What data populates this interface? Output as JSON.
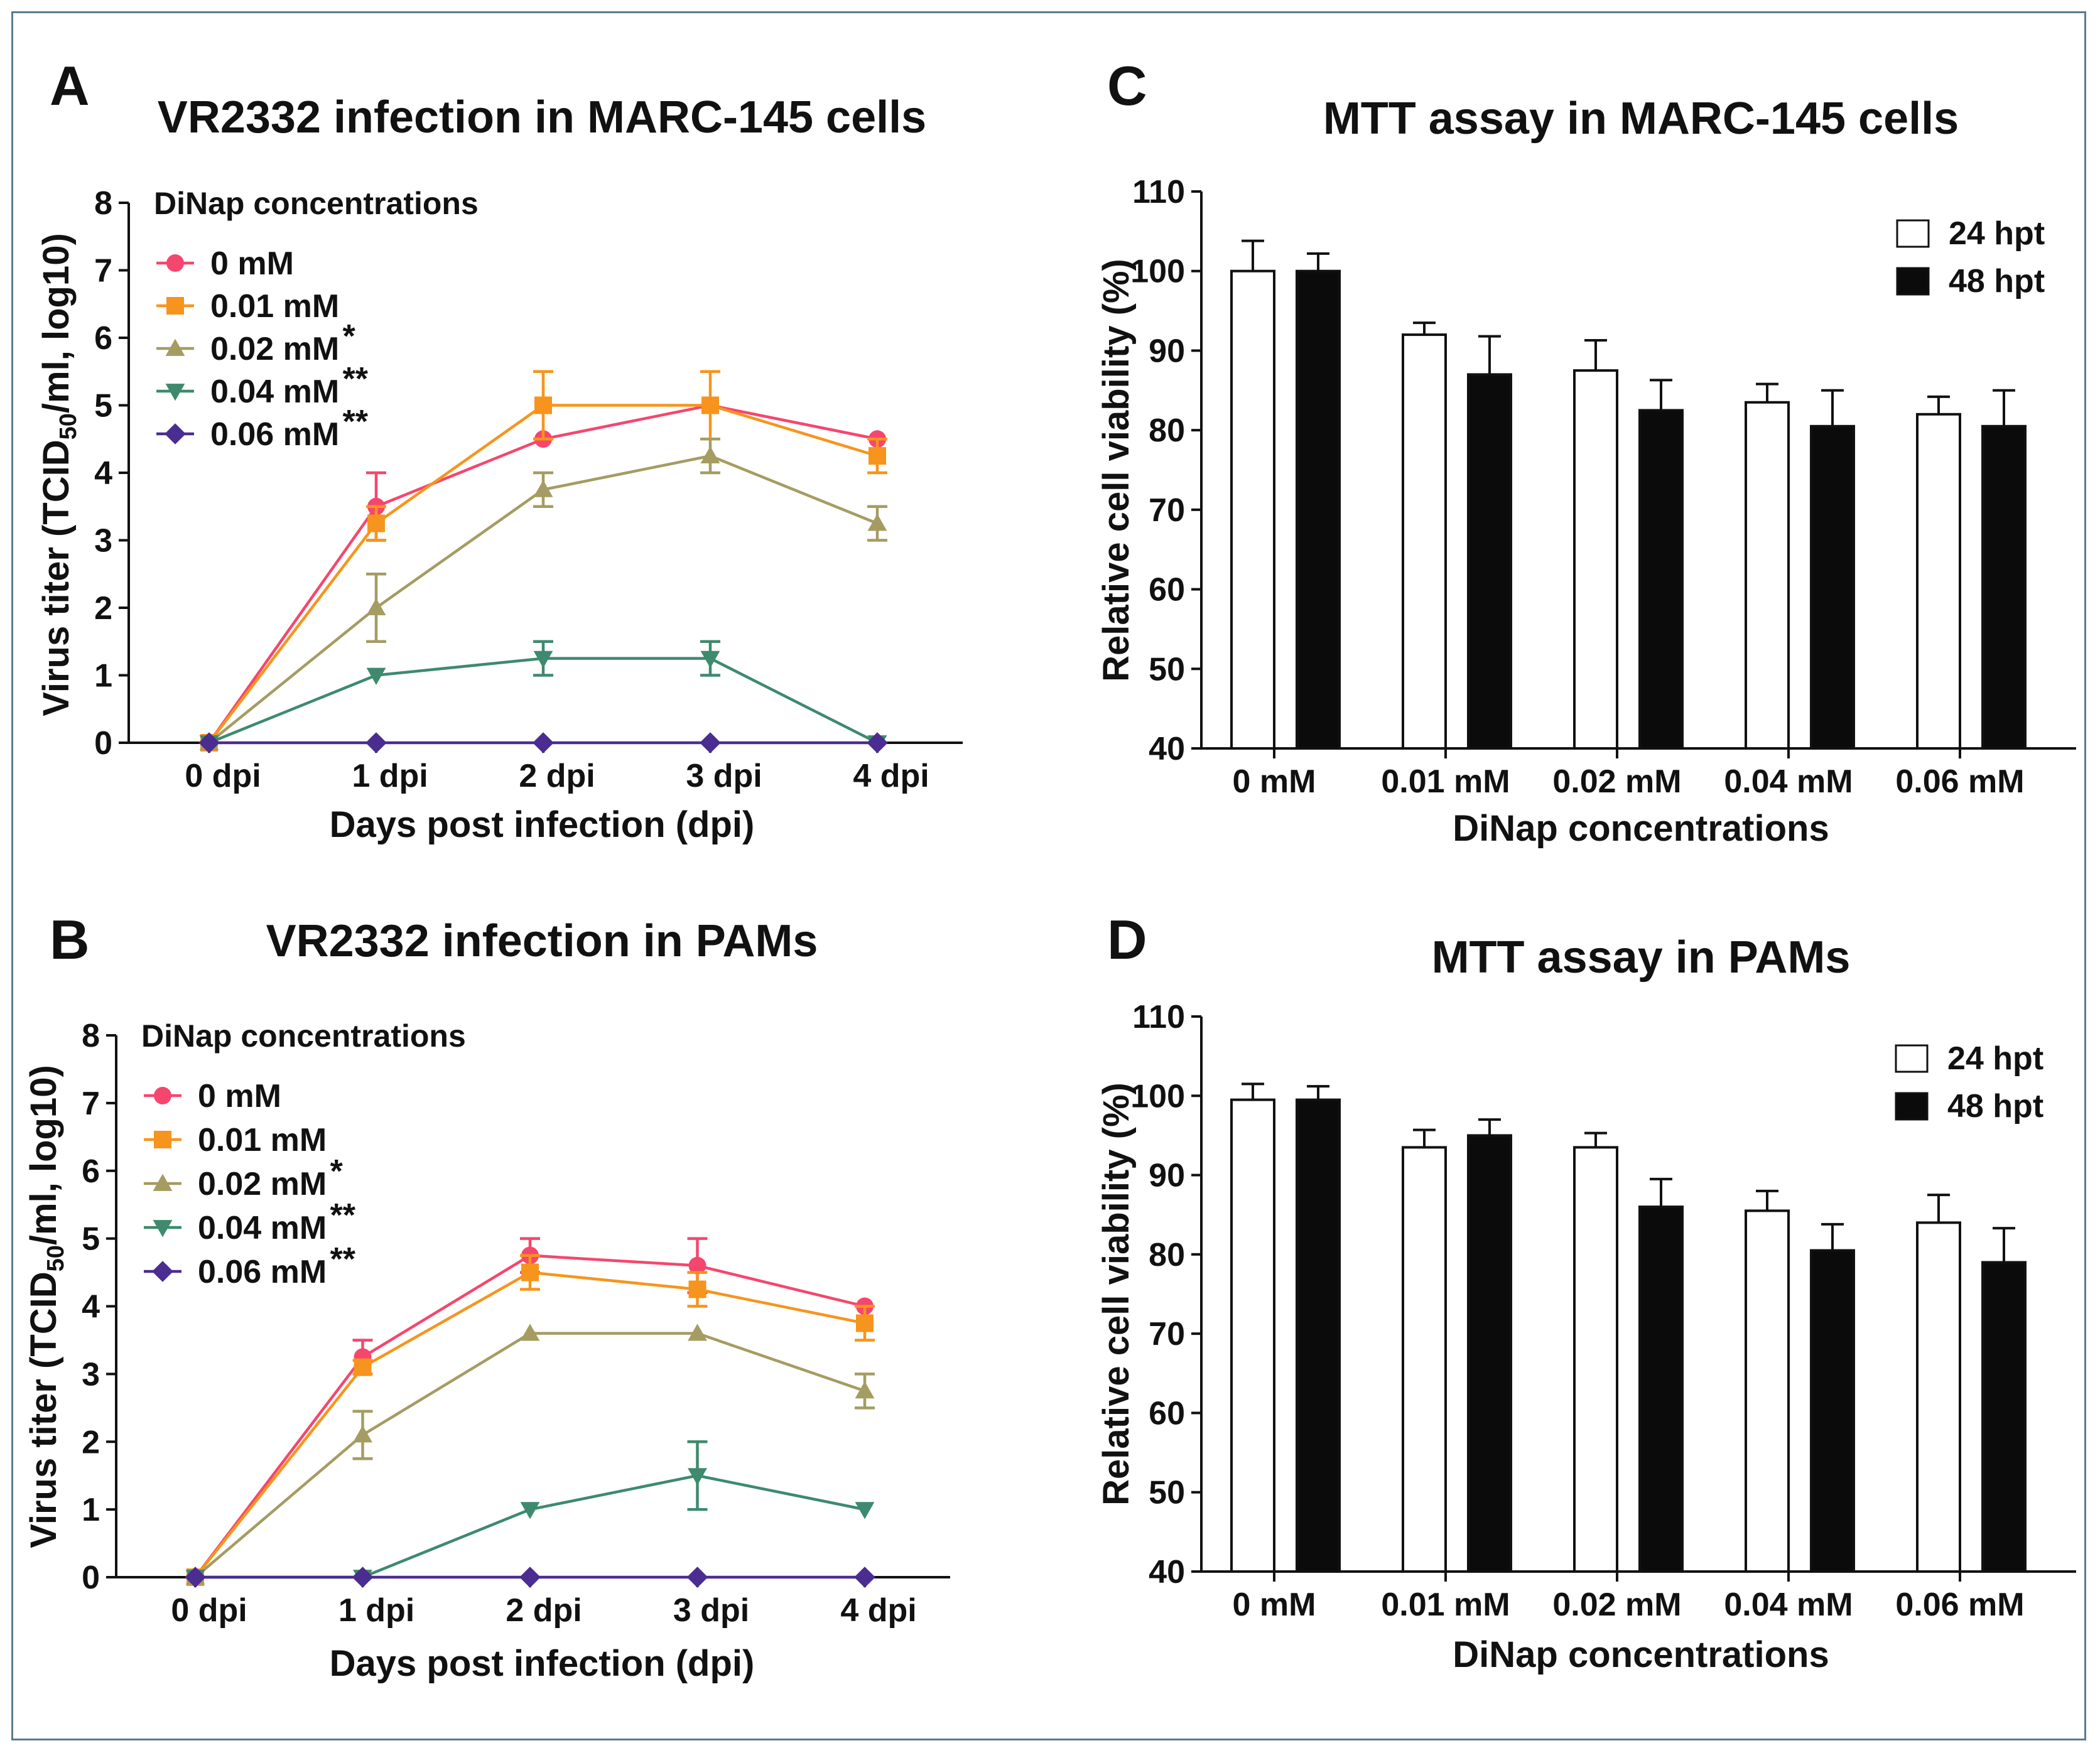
{
  "colors": {
    "s0": "#f5466e",
    "s001": "#f7941d",
    "s002": "#a59c62",
    "s004": "#3d8a6e",
    "s006": "#4b2c91",
    "bar24": "#ffffff",
    "bar48": "#0b0b0b",
    "frame": "#5a7a90"
  },
  "panels": {
    "A": {
      "letter": "A",
      "legend_title": "DiNap concentrations",
      "chart_data": {
        "type": "line",
        "title": "VR2332 infection in MARC-145 cells",
        "xlabel": "Days post infection (dpi)",
        "ylabel": "Virus titer (TCID50/ml, log10)",
        "ylabel_sub": {
          "prefix": "Virus titer (TCID",
          "sub": "50",
          "suffix": "/ml, log10)"
        },
        "categories": [
          "0 dpi",
          "1 dpi",
          "2 dpi",
          "3 dpi",
          "4 dpi"
        ],
        "ylim": [
          0,
          8
        ],
        "yticks": [
          0,
          1,
          2,
          3,
          4,
          5,
          6,
          7,
          8
        ],
        "series": [
          {
            "name": "0 mM",
            "sig": "",
            "marker": "circle",
            "color_key": "s0",
            "values": [
              0,
              3.5,
              4.5,
              5.0,
              4.5
            ],
            "errors": [
              0,
              0.5,
              0,
              0,
              0
            ]
          },
          {
            "name": "0.01 mM",
            "sig": "",
            "marker": "square",
            "color_key": "s001",
            "values": [
              0,
              3.25,
              5.0,
              5.0,
              4.25
            ],
            "errors": [
              0,
              0.25,
              0.5,
              0.5,
              0.25
            ]
          },
          {
            "name": "0.02 mM",
            "sig": "*",
            "marker": "triangle-up",
            "color_key": "s002",
            "values": [
              0,
              2.0,
              3.75,
              4.25,
              3.25
            ],
            "errors": [
              0,
              0.5,
              0.25,
              0.25,
              0.25
            ]
          },
          {
            "name": "0.04 mM",
            "sig": "**",
            "marker": "triangle-down",
            "color_key": "s004",
            "values": [
              0,
              1.0,
              1.25,
              1.25,
              0
            ],
            "errors": [
              0,
              0,
              0.25,
              0.25,
              0
            ]
          },
          {
            "name": "0.06 mM",
            "sig": "**",
            "marker": "diamond",
            "color_key": "s006",
            "values": [
              0,
              0,
              0,
              0,
              0
            ],
            "errors": [
              0,
              0,
              0,
              0,
              0
            ]
          }
        ]
      }
    },
    "B": {
      "letter": "B",
      "legend_title": "DiNap concentrations",
      "chart_data": {
        "type": "line",
        "title": "VR2332 infection in PAMs",
        "xlabel": "Days post infection (dpi)",
        "ylabel": "Virus titer (TCID50/ml, log10)",
        "ylabel_sub": {
          "prefix": "Virus titer (TCID",
          "sub": "50",
          "suffix": "/ml, log10)"
        },
        "categories": [
          "0 dpi",
          "1 dpi",
          "2 dpi",
          "3 dpi",
          "4 dpi"
        ],
        "ylim": [
          0,
          8
        ],
        "yticks": [
          0,
          1,
          2,
          3,
          4,
          5,
          6,
          7,
          8
        ],
        "series": [
          {
            "name": "0 mM",
            "sig": "",
            "marker": "circle",
            "color_key": "s0",
            "values": [
              0,
              3.25,
              4.75,
              4.6,
              4.0
            ],
            "errors": [
              0,
              0.25,
              0.25,
              0.4,
              0
            ]
          },
          {
            "name": "0.01 mM",
            "sig": "",
            "marker": "square",
            "color_key": "s001",
            "values": [
              0,
              3.1,
              4.5,
              4.25,
              3.75
            ],
            "errors": [
              0,
              0.1,
              0.25,
              0.25,
              0.25
            ]
          },
          {
            "name": "0.02 mM",
            "sig": "*",
            "marker": "triangle-up",
            "color_key": "s002",
            "values": [
              0,
              2.1,
              3.6,
              3.6,
              2.75
            ],
            "errors": [
              0,
              0.35,
              0,
              0,
              0.25
            ]
          },
          {
            "name": "0.04 mM",
            "sig": "**",
            "marker": "triangle-down",
            "color_key": "s004",
            "values": [
              0,
              0,
              1.0,
              1.5,
              1.0
            ],
            "errors": [
              0,
              0,
              0,
              0.5,
              0
            ]
          },
          {
            "name": "0.06 mM",
            "sig": "**",
            "marker": "diamond",
            "color_key": "s006",
            "values": [
              0,
              0,
              0,
              0,
              0
            ],
            "errors": [
              0,
              0,
              0,
              0,
              0
            ]
          }
        ]
      }
    },
    "C": {
      "letter": "C",
      "chart_data": {
        "type": "bar",
        "title": "MTT assay in MARC-145 cells",
        "xlabel": "DiNap concentrations",
        "ylabel": "Relative cell viability (%)",
        "categories": [
          "0 mM",
          "0.01 mM",
          "0.02 mM",
          "0.04 mM",
          "0.06 mM"
        ],
        "ylim": [
          40,
          110
        ],
        "yticks": [
          40,
          50,
          60,
          70,
          80,
          90,
          100,
          110
        ],
        "legend_position": "top-right",
        "series": [
          {
            "name": "24 hpt",
            "color_key": "bar24",
            "values": [
              100,
              92,
              87.5,
              83.5,
              82
            ],
            "errors": [
              3.8,
              1.5,
              3.8,
              2.3,
              2.2
            ]
          },
          {
            "name": "48 hpt",
            "color_key": "bar48",
            "values": [
              100,
              87,
              82.5,
              80.5,
              80.5
            ],
            "errors": [
              2.2,
              4.8,
              3.8,
              4.5,
              4.5
            ]
          }
        ]
      }
    },
    "D": {
      "letter": "D",
      "chart_data": {
        "type": "bar",
        "title": "MTT assay in PAMs",
        "xlabel": "DiNap concentrations",
        "ylabel": "Relative cell viability (%)",
        "categories": [
          "0 mM",
          "0.01 mM",
          "0.02 mM",
          "0.04 mM",
          "0.06 mM"
        ],
        "ylim": [
          40,
          110
        ],
        "yticks": [
          40,
          50,
          60,
          70,
          80,
          90,
          100,
          110
        ],
        "legend_position": "top-right",
        "series": [
          {
            "name": "24 hpt",
            "color_key": "bar24",
            "values": [
              99.5,
              93.5,
              93.5,
              85.5,
              84
            ],
            "errors": [
              2.0,
              2.2,
              1.8,
              2.5,
              3.5
            ]
          },
          {
            "name": "48 hpt",
            "color_key": "bar48",
            "values": [
              99.5,
              95,
              86,
              80.5,
              79
            ],
            "errors": [
              1.7,
              2.0,
              3.5,
              3.3,
              4.3
            ]
          }
        ]
      }
    }
  }
}
